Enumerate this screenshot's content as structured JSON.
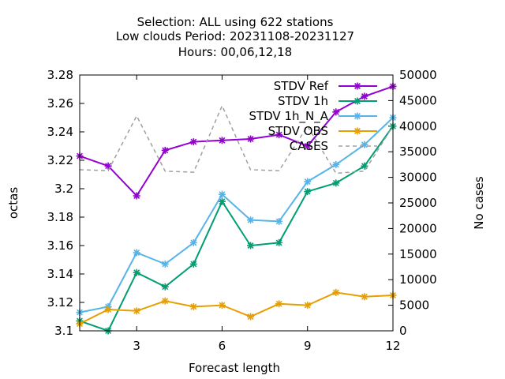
{
  "chart_data": {
    "type": "line",
    "title_lines": [
      "Selection: ALL using   622 stations",
      "Low clouds   Period: 20231108-20231127",
      "Hours:  00,06,12,18"
    ],
    "xlabel": "Forecast length",
    "ylabel": "octas",
    "y2label": "No cases",
    "x": [
      1,
      2,
      3,
      4,
      5,
      6,
      7,
      8,
      9,
      10,
      11,
      12
    ],
    "xlim": [
      1,
      12
    ],
    "xticks": [
      3,
      6,
      9,
      12
    ],
    "ylim": [
      3.1,
      3.28
    ],
    "yticks": [
      "3.1",
      "3.12",
      "3.14",
      "3.16",
      "3.18",
      "3.2",
      "3.22",
      "3.24",
      "3.26",
      "3.28"
    ],
    "y2lim": [
      0,
      50000
    ],
    "y2ticks": [
      "0",
      "5000",
      "10000",
      "15000",
      "20000",
      "25000",
      "30000",
      "35000",
      "40000",
      "45000",
      "50000"
    ],
    "legend_position": "top-right",
    "series": [
      {
        "name": "STDV Ref",
        "color": "#9400d3",
        "axis": "left",
        "style": "solid",
        "values": [
          3.223,
          3.216,
          3.195,
          3.227,
          3.233,
          3.234,
          3.235,
          3.238,
          3.23,
          3.254,
          3.265,
          3.272
        ]
      },
      {
        "name": "STDV 1h",
        "color": "#009e73",
        "axis": "left",
        "style": "solid",
        "values": [
          3.107,
          3.1,
          3.141,
          3.131,
          3.147,
          3.191,
          3.16,
          3.162,
          3.198,
          3.204,
          3.216,
          3.244
        ]
      },
      {
        "name": "STDV 1h_N_A",
        "color": "#56b4e9",
        "axis": "left",
        "style": "solid",
        "values": [
          3.113,
          3.117,
          3.155,
          3.147,
          3.162,
          3.196,
          3.178,
          3.177,
          3.205,
          3.217,
          3.231,
          3.25
        ]
      },
      {
        "name": "STDV OBS",
        "color": "#e69f00",
        "axis": "left",
        "style": "solid",
        "values": [
          3.105,
          3.115,
          3.114,
          3.121,
          3.117,
          3.118,
          3.11,
          3.119,
          3.118,
          3.127,
          3.124,
          3.125
        ]
      },
      {
        "name": "CASES",
        "color": "#a0a0a0",
        "axis": "right",
        "style": "dashed",
        "values": [
          31500,
          31300,
          42000,
          31200,
          31000,
          44000,
          31500,
          31300,
          40000,
          30800,
          31200,
          40000
        ]
      }
    ]
  }
}
